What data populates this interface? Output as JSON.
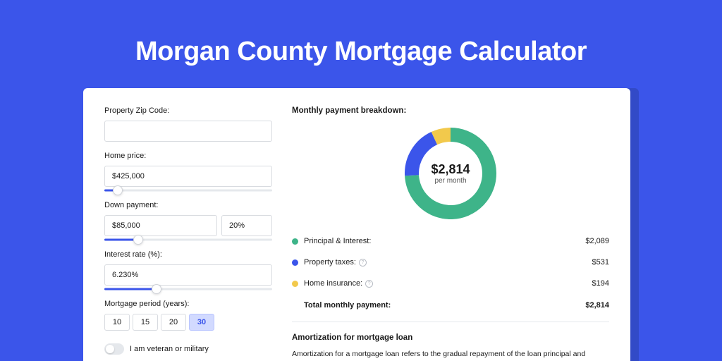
{
  "page": {
    "title": "Morgan County Mortgage Calculator",
    "bg_color": "#3b55ea",
    "card_shadow_color": "#324ac7"
  },
  "form": {
    "zip": {
      "label": "Property Zip Code:",
      "value": ""
    },
    "home_price": {
      "label": "Home price:",
      "value": "$425,000",
      "slider_pct": 8
    },
    "down_payment": {
      "label": "Down payment:",
      "value": "$85,000",
      "pct_value": "20%",
      "slider_pct": 20
    },
    "interest_rate": {
      "label": "Interest rate (%):",
      "value": "6.230%",
      "slider_pct": 31
    },
    "period": {
      "label": "Mortgage period (years):",
      "options": [
        "10",
        "15",
        "20",
        "30"
      ],
      "selected_index": 3
    },
    "veteran": {
      "label": "I am veteran or military",
      "checked": false
    }
  },
  "breakdown": {
    "title": "Monthly payment breakdown:",
    "total_amount": "$2,814",
    "total_sub": "per month",
    "donut": {
      "size": 130,
      "stroke": 20,
      "background": "#ffffff",
      "slices": [
        {
          "name": "Principal & Interest",
          "value": 2089,
          "color": "#3eb489",
          "pct": 74.2
        },
        {
          "name": "Property taxes",
          "value": 531,
          "color": "#3b55ea",
          "pct": 18.9
        },
        {
          "name": "Home insurance",
          "value": 194,
          "color": "#f2c94c",
          "pct": 6.9
        }
      ]
    },
    "rows": [
      {
        "swatch": "#3eb489",
        "name": "Principal & Interest:",
        "info": false,
        "value": "$2,089"
      },
      {
        "swatch": "#3b55ea",
        "name": "Property taxes:",
        "info": true,
        "value": "$531"
      },
      {
        "swatch": "#f2c94c",
        "name": "Home insurance:",
        "info": true,
        "value": "$194"
      }
    ],
    "total_row": {
      "name": "Total monthly payment:",
      "value": "$2,814"
    }
  },
  "amortization": {
    "title": "Amortization for mortgage loan",
    "text": "Amortization for a mortgage loan refers to the gradual repayment of the loan principal and interest over a specified"
  }
}
